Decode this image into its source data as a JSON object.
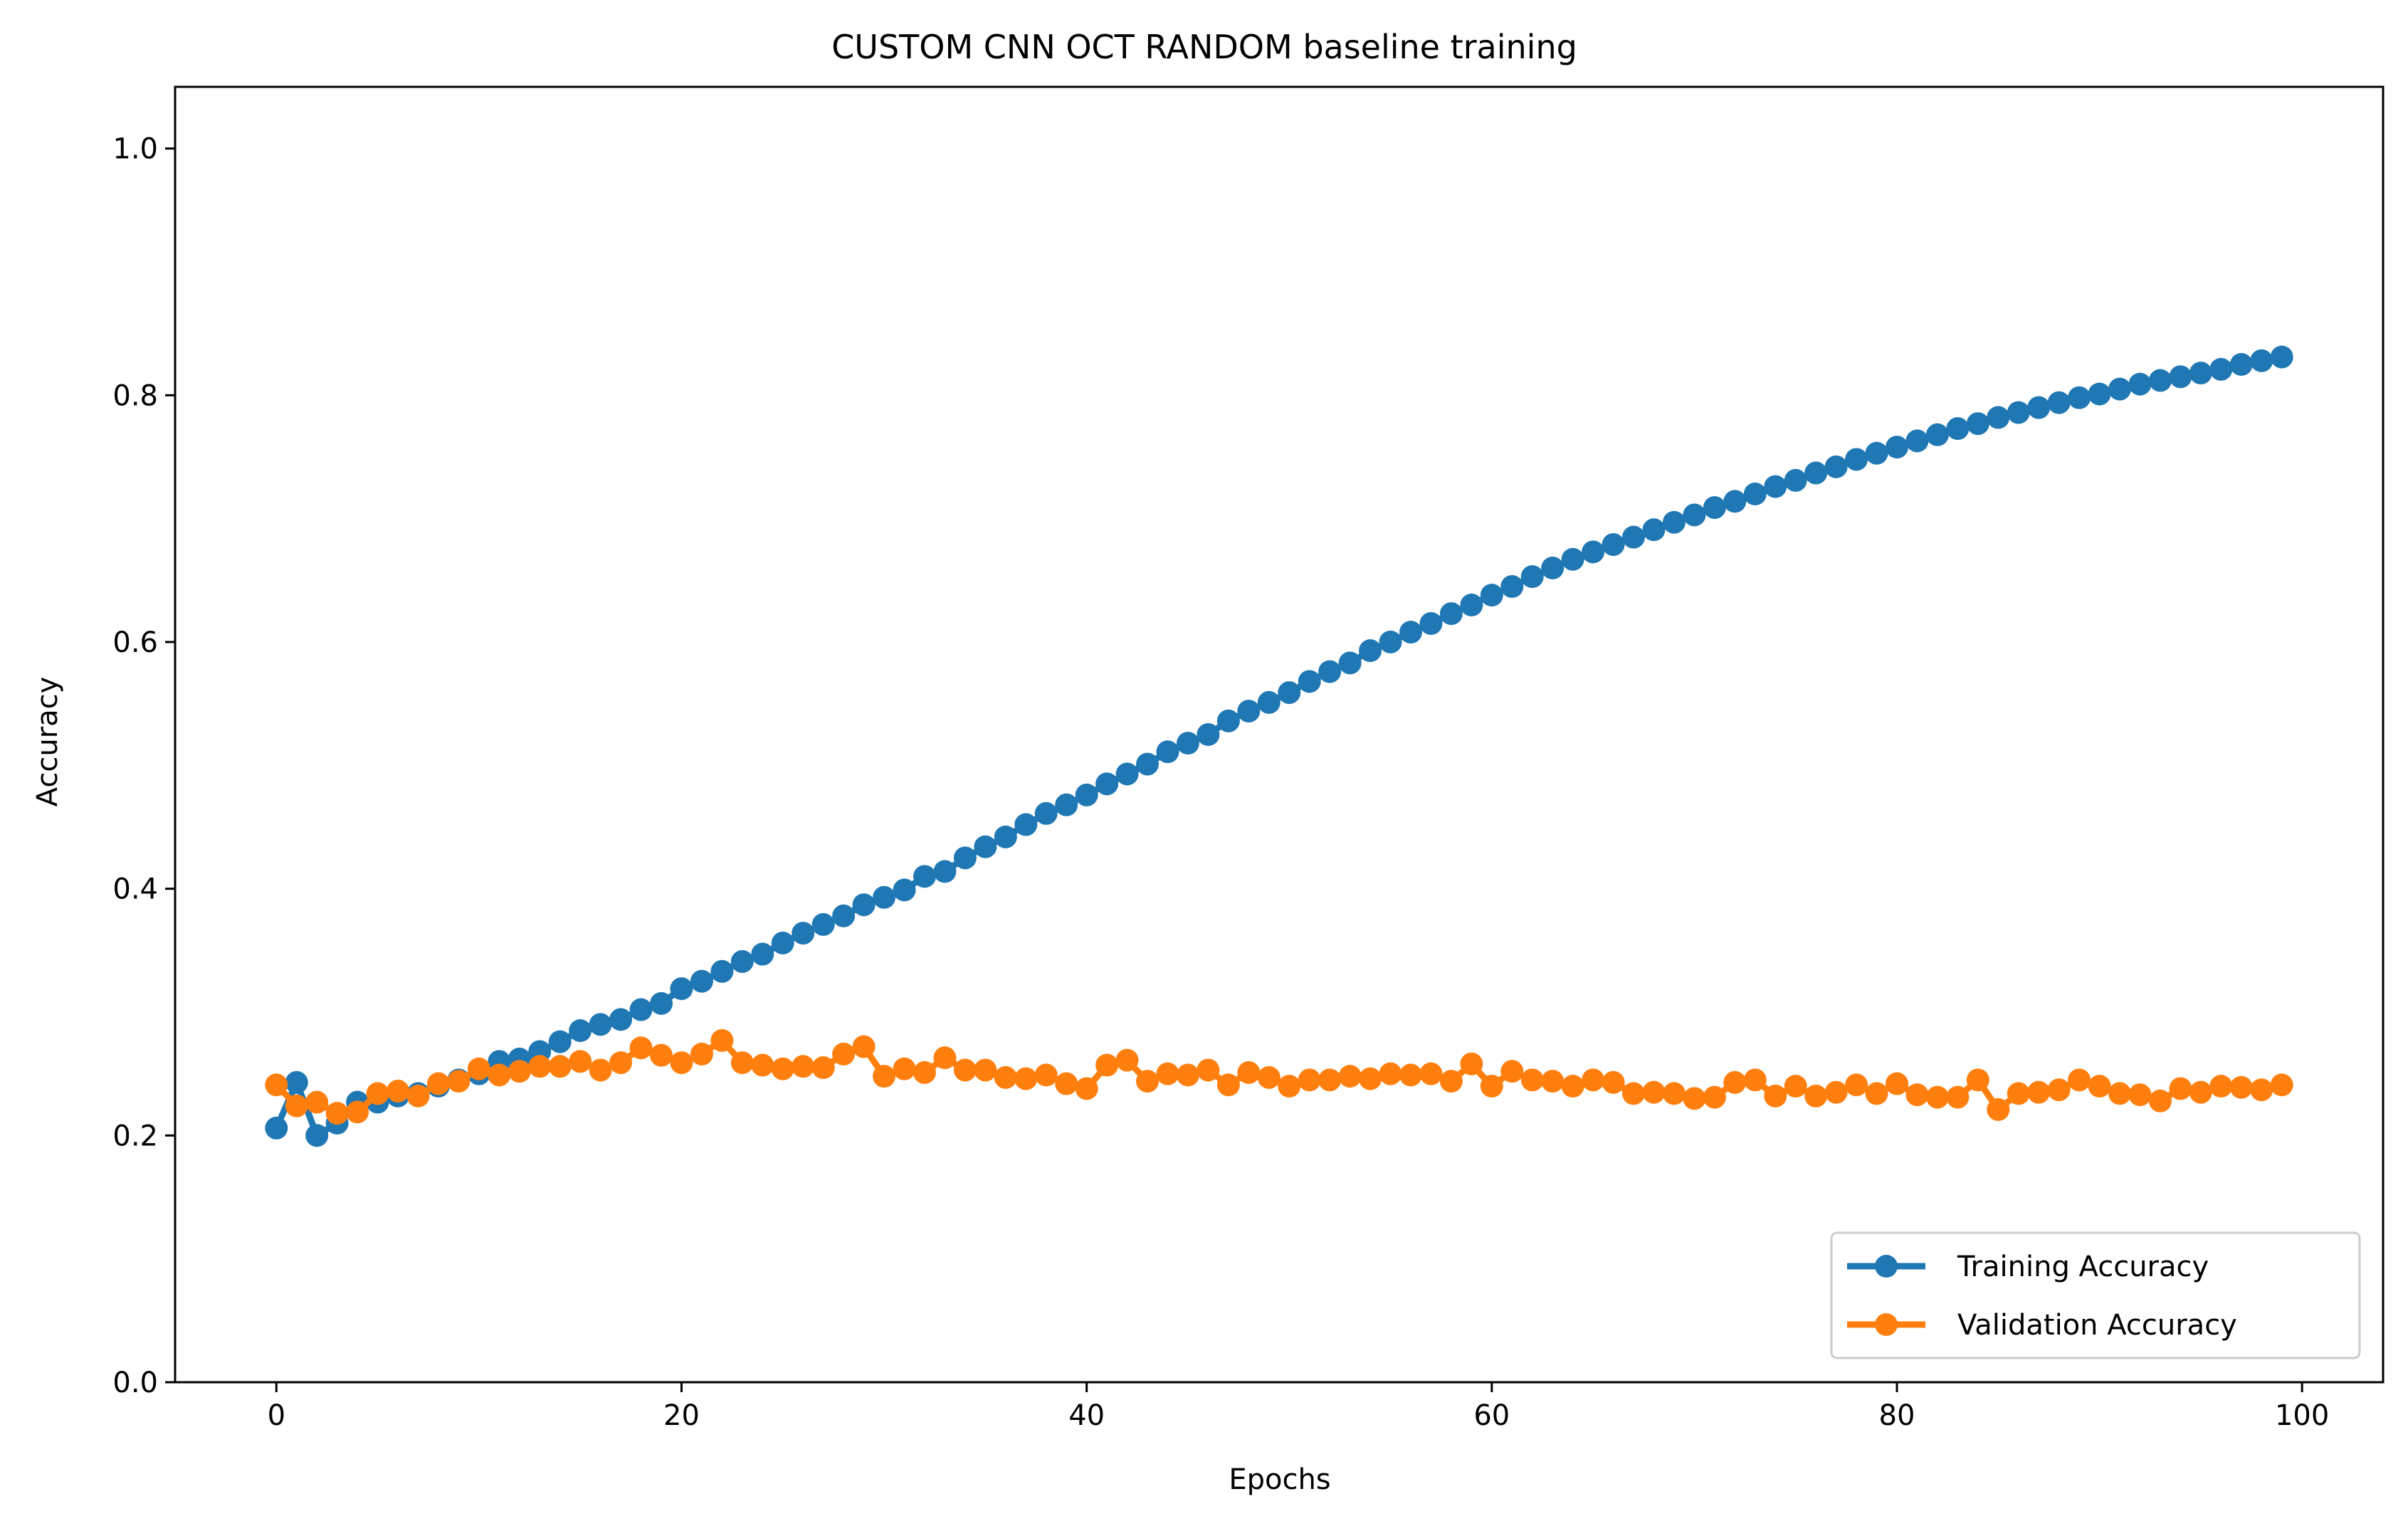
{
  "chart_data": {
    "type": "line",
    "title": "CUSTOM CNN OCT RANDOM baseline training",
    "xlabel": "Epochs",
    "ylabel": "Accuracy",
    "xlim": [
      -5,
      104
    ],
    "ylim": [
      0,
      1.05
    ],
    "xticks": [
      0,
      20,
      40,
      60,
      80,
      100
    ],
    "yticks": [
      0.0,
      0.2,
      0.4,
      0.6,
      0.8,
      1.0
    ],
    "xtick_labels": [
      "0",
      "20",
      "40",
      "60",
      "80",
      "100"
    ],
    "ytick_labels": [
      "0.0",
      "0.2",
      "0.4",
      "0.6",
      "0.8",
      "1.0"
    ],
    "grid": false,
    "legend_position": "lower-right",
    "x": [
      0,
      1,
      2,
      3,
      4,
      5,
      6,
      7,
      8,
      9,
      10,
      11,
      12,
      13,
      14,
      15,
      16,
      17,
      18,
      19,
      20,
      21,
      22,
      23,
      24,
      25,
      26,
      27,
      28,
      29,
      30,
      31,
      32,
      33,
      34,
      35,
      36,
      37,
      38,
      39,
      40,
      41,
      42,
      43,
      44,
      45,
      46,
      47,
      48,
      49,
      50,
      51,
      52,
      53,
      54,
      55,
      56,
      57,
      58,
      59,
      60,
      61,
      62,
      63,
      64,
      65,
      66,
      67,
      68,
      69,
      70,
      71,
      72,
      73,
      74,
      75,
      76,
      77,
      78,
      79,
      80,
      81,
      82,
      83,
      84,
      85,
      86,
      87,
      88,
      89,
      90,
      91,
      92,
      93,
      94,
      95,
      96,
      97,
      98,
      99
    ],
    "series": [
      {
        "name": "Training Accuracy",
        "color": "#1f77b4",
        "values": [
          0.206,
          0.243,
          0.2,
          0.21,
          0.227,
          0.227,
          0.232,
          0.234,
          0.24,
          0.245,
          0.25,
          0.26,
          0.262,
          0.268,
          0.276,
          0.285,
          0.29,
          0.294,
          0.302,
          0.307,
          0.319,
          0.325,
          0.333,
          0.341,
          0.347,
          0.356,
          0.364,
          0.371,
          0.378,
          0.387,
          0.393,
          0.399,
          0.41,
          0.414,
          0.425,
          0.434,
          0.442,
          0.452,
          0.461,
          0.468,
          0.476,
          0.485,
          0.493,
          0.501,
          0.511,
          0.518,
          0.525,
          0.536,
          0.544,
          0.551,
          0.559,
          0.568,
          0.576,
          0.583,
          0.593,
          0.6,
          0.608,
          0.615,
          0.623,
          0.63,
          0.638,
          0.645,
          0.653,
          0.66,
          0.667,
          0.673,
          0.679,
          0.685,
          0.691,
          0.697,
          0.703,
          0.709,
          0.714,
          0.72,
          0.726,
          0.731,
          0.737,
          0.742,
          0.748,
          0.753,
          0.758,
          0.763,
          0.768,
          0.773,
          0.777,
          0.782,
          0.786,
          0.79,
          0.794,
          0.798,
          0.801,
          0.805,
          0.809,
          0.812,
          0.815,
          0.818,
          0.821,
          0.825,
          0.828,
          0.831
        ]
      },
      {
        "name": "Validation Accuracy",
        "color": "#ff7f0e",
        "values": [
          0.241,
          0.224,
          0.227,
          0.218,
          0.219,
          0.234,
          0.236,
          0.232,
          0.242,
          0.244,
          0.254,
          0.249,
          0.252,
          0.256,
          0.256,
          0.26,
          0.253,
          0.259,
          0.271,
          0.265,
          0.259,
          0.266,
          0.277,
          0.259,
          0.257,
          0.254,
          0.256,
          0.255,
          0.266,
          0.272,
          0.248,
          0.254,
          0.251,
          0.263,
          0.253,
          0.253,
          0.247,
          0.246,
          0.249,
          0.242,
          0.238,
          0.257,
          0.261,
          0.244,
          0.25,
          0.249,
          0.253,
          0.241,
          0.251,
          0.247,
          0.24,
          0.245,
          0.245,
          0.248,
          0.246,
          0.25,
          0.249,
          0.25,
          0.244,
          0.258,
          0.24,
          0.252,
          0.245,
          0.244,
          0.24,
          0.245,
          0.243,
          0.234,
          0.235,
          0.234,
          0.23,
          0.231,
          0.243,
          0.245,
          0.232,
          0.24,
          0.232,
          0.235,
          0.241,
          0.234,
          0.242,
          0.233,
          0.231,
          0.231,
          0.245,
          0.221,
          0.234,
          0.235,
          0.237,
          0.245,
          0.24,
          0.234,
          0.233,
          0.228,
          0.238,
          0.235,
          0.24,
          0.239,
          0.237,
          0.241
        ]
      }
    ]
  }
}
